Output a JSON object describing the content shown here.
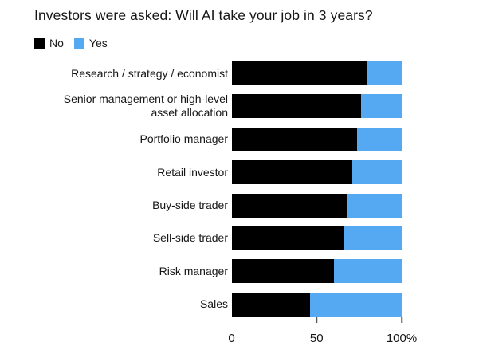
{
  "title": "Investors were asked: Will AI take your job in 3 years?",
  "colors": {
    "no": "#000000",
    "yes": "#55a9f3",
    "tick": "#58595b",
    "text": "#161616",
    "background": "#ffffff"
  },
  "legend": {
    "items": [
      {
        "label": "No",
        "color": "#000000"
      },
      {
        "label": "Yes",
        "color": "#55a9f3"
      }
    ]
  },
  "chart_data": {
    "type": "bar",
    "orientation": "horizontal",
    "stacked": true,
    "unit": "%",
    "title": "Investors were asked: Will AI take your job in 3 years?",
    "categories": [
      "Research / strategy / economist",
      "Senior management or high-level asset allocation",
      "Portfolio manager",
      "Retail investor",
      "Buy-side trader",
      "Sell-side trader",
      "Risk manager",
      "Sales"
    ],
    "series": [
      {
        "name": "No",
        "color": "#000000",
        "values": [
          80,
          76,
          74,
          71,
          68,
          66,
          60,
          46
        ]
      },
      {
        "name": "Yes",
        "color": "#55a9f3",
        "values": [
          20,
          24,
          26,
          29,
          32,
          34,
          40,
          54
        ]
      }
    ],
    "xlim": [
      0,
      100
    ],
    "x_ticks": [
      {
        "value": 0,
        "label": "0",
        "mark": false
      },
      {
        "value": 50,
        "label": "50",
        "mark": true
      },
      {
        "value": 100,
        "label": "100%",
        "mark": true
      }
    ],
    "legend_position": "top-left",
    "grid": false
  }
}
